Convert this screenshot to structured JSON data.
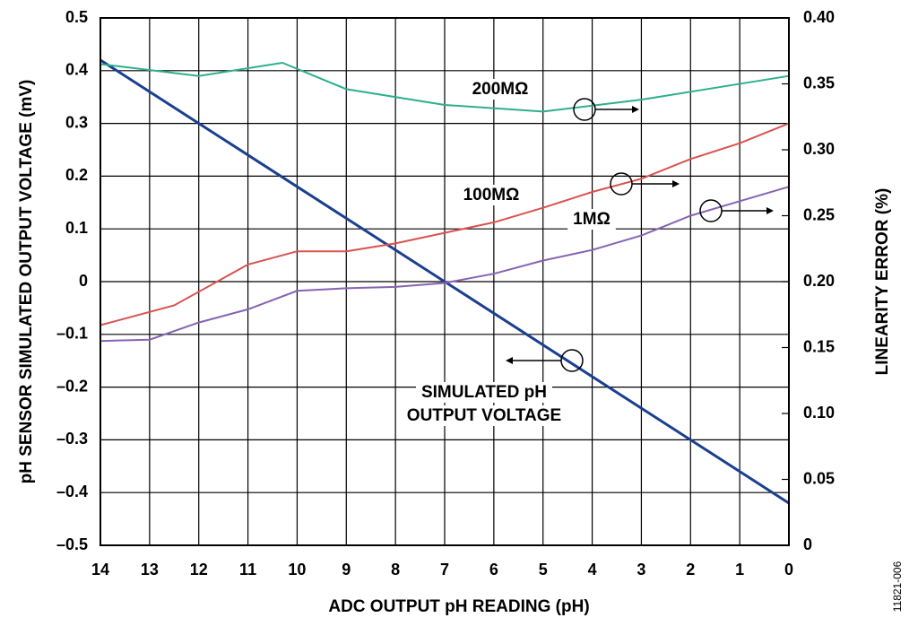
{
  "chart_data": {
    "type": "line",
    "xlabel": "ADC OUTPUT pH READING (pH)",
    "ylabel": "pH SENSOR SIMULATED OUTPUT VOLTAGE (mV)",
    "y2label": "LINEARITY ERROR (%)",
    "xlim": [
      14,
      0
    ],
    "xticks": [
      14,
      13,
      12,
      11,
      10,
      9,
      8,
      7,
      6,
      5,
      4,
      3,
      2,
      1,
      0
    ],
    "ylim": [
      -0.5,
      0.5
    ],
    "yticks": [
      {
        "value": -0.5,
        "label": "–0.5"
      },
      {
        "value": -0.4,
        "label": "–0.4"
      },
      {
        "value": -0.3,
        "label": "–0.3"
      },
      {
        "value": -0.2,
        "label": "–0.2"
      },
      {
        "value": -0.1,
        "label": "–0.1"
      },
      0,
      0.1,
      0.2,
      0.3,
      0.4,
      0.5
    ],
    "y2lim": [
      0,
      0.4
    ],
    "y2ticks": [
      0,
      0.05,
      {
        "value": 0.1,
        "label": "0.10"
      },
      0.15,
      {
        "value": 0.2,
        "label": "0.20"
      },
      0.25,
      {
        "value": 0.3,
        "label": "0.30"
      },
      0.35,
      {
        "value": 0.4,
        "label": "0.40"
      }
    ],
    "grid": true,
    "series": [
      {
        "name": "SIMULATED pH OUTPUT VOLTAGE",
        "color": "#1b3f8f",
        "x": [
          14,
          0
        ],
        "values": [
          0.42,
          -0.42
        ]
      },
      {
        "name": "200MΩ",
        "color": "#2fae8c",
        "axis": "y2",
        "x": [
          14,
          12,
          10.3,
          9,
          7,
          5,
          3,
          2,
          0
        ],
        "values": [
          0.365,
          0.356,
          0.366,
          0.346,
          0.334,
          0.329,
          0.338,
          0.344,
          0.356
        ]
      },
      {
        "name": "100MΩ",
        "color": "#d9534f",
        "axis": "y2",
        "x": [
          14,
          12.5,
          11,
          10,
          9,
          8,
          7,
          6,
          5,
          4,
          3,
          2,
          1,
          0
        ],
        "values": [
          0.167,
          0.182,
          0.213,
          0.223,
          0.223,
          0.229,
          0.237,
          0.245,
          0.256,
          0.268,
          0.278,
          0.293,
          0.305,
          0.32
        ]
      },
      {
        "name": "1MΩ",
        "color": "#8763b3",
        "axis": "y2",
        "x": [
          14,
          13,
          12,
          11,
          10,
          9,
          8,
          7,
          6,
          5,
          4,
          3,
          2,
          1,
          0
        ],
        "values": [
          0.155,
          0.156,
          0.169,
          0.179,
          0.193,
          0.195,
          0.196,
          0.199,
          0.206,
          0.216,
          0.224,
          0.235,
          0.25,
          0.261,
          0.272
        ]
      }
    ],
    "annotations": [
      "SIMULATED pH",
      "OUTPUT VOLTAGE",
      "11821-006"
    ]
  }
}
